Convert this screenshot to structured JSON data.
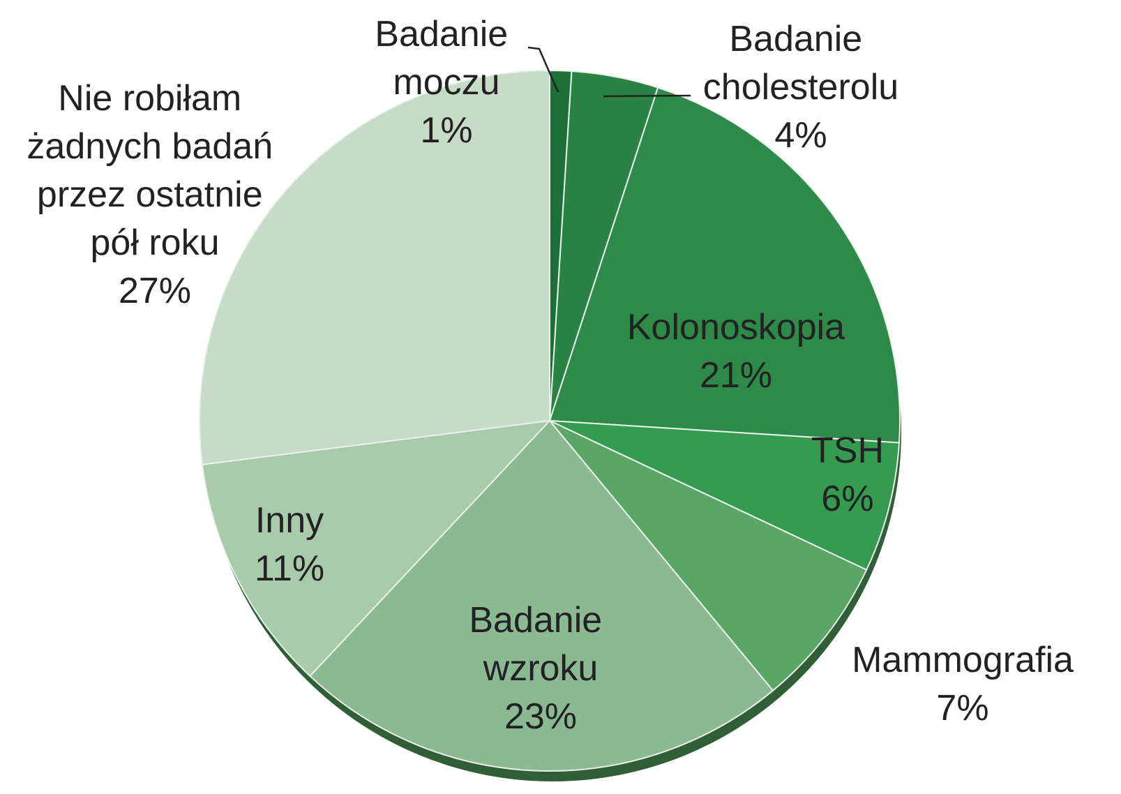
{
  "chart_data": {
    "type": "pie",
    "categories": [
      "Badanie moczu",
      "Badanie cholesterolu",
      "Kolonoskopia",
      "TSH",
      "Mammografia",
      "Badanie wzroku",
      "Inny",
      "Nie robiłam żadnych badań przez ostatnie pół roku"
    ],
    "values": [
      1,
      4,
      21,
      6,
      7,
      23,
      11,
      27
    ],
    "value_labels": [
      "1%",
      "4%",
      "21%",
      "6%",
      "7%",
      "23%",
      "11%",
      "27%"
    ],
    "colors": [
      "#1f6f3a",
      "#2a8244",
      "#2e8a48",
      "#349b51",
      "#5ba566",
      "#8ab992",
      "#a9cbab",
      "#c6dcc7"
    ]
  }
}
